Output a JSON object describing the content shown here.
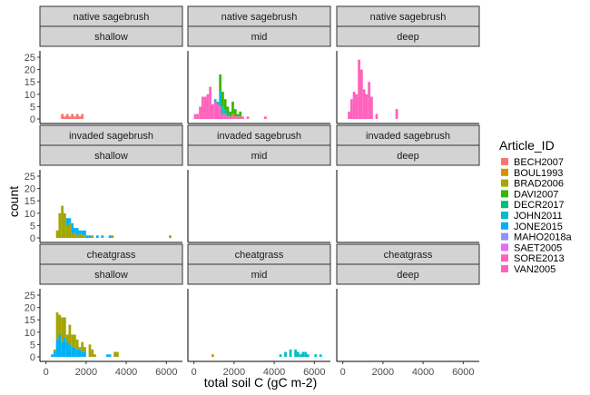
{
  "chart_data": {
    "type": "bar",
    "subtype": "faceted stacked histogram",
    "xlabel": "total soil C (gC m-2)",
    "ylabel": "count",
    "xlim": [
      -300,
      6800
    ],
    "ylim": [
      0,
      25
    ],
    "x_ticks": [
      0,
      2000,
      4000,
      6000
    ],
    "x_tick_labels": [
      "0",
      "2000",
      "4000",
      "6000"
    ],
    "y_ticks": [
      0,
      5,
      10,
      15,
      20,
      25
    ],
    "y_tick_labels": [
      "0",
      "5",
      "10",
      "15",
      "20",
      "25"
    ],
    "bin_width": 125,
    "legend": {
      "title": "Article_ID",
      "position": "right",
      "entries": [
        {
          "name": "BECH2007",
          "color": "#F8766D"
        },
        {
          "name": "BOUL1993",
          "color": "#D89000"
        },
        {
          "name": "BRAD2006",
          "color": "#A3A500"
        },
        {
          "name": "DAVI2007",
          "color": "#39B600"
        },
        {
          "name": "DECR2017",
          "color": "#00BF7D"
        },
        {
          "name": "JOHN2011",
          "color": "#00BFC4"
        },
        {
          "name": "JONE2015",
          "color": "#00B0F6"
        },
        {
          "name": "MAHO2018a",
          "color": "#9590FF"
        },
        {
          "name": "SAET2005",
          "color": "#E76BF3"
        },
        {
          "name": "SORE2013",
          "color": "#FF62BC"
        },
        {
          "name": "VAN2005",
          "color": "#FF62BC"
        }
      ]
    },
    "panels": [
      {
        "row_label": "native sagebrush",
        "col_label": "shallow",
        "row": 0,
        "col": 0,
        "bars": [
          {
            "x": 750,
            "series": "BECH2007",
            "count": 2
          },
          {
            "x": 875,
            "series": "BECH2007",
            "count": 1
          },
          {
            "x": 1000,
            "series": "BECH2007",
            "count": 2
          },
          {
            "x": 1125,
            "series": "BECH2007",
            "count": 1
          },
          {
            "x": 1250,
            "series": "BECH2007",
            "count": 2
          },
          {
            "x": 1375,
            "series": "BECH2007",
            "count": 1
          },
          {
            "x": 1500,
            "series": "BECH2007",
            "count": 2
          },
          {
            "x": 1625,
            "series": "BECH2007",
            "count": 1
          },
          {
            "x": 1750,
            "series": "BECH2007",
            "count": 2
          }
        ]
      },
      {
        "row_label": "native sagebrush",
        "col_label": "mid",
        "row": 0,
        "col": 1,
        "bars": [
          {
            "x": 0,
            "series": "SORE2013",
            "count": 2
          },
          {
            "x": 125,
            "series": "SORE2013",
            "count": 2
          },
          {
            "x": 250,
            "series": "SORE2013",
            "count": 5
          },
          {
            "x": 375,
            "series": "SORE2013",
            "count": 9
          },
          {
            "x": 500,
            "series": "SORE2013",
            "count": 9
          },
          {
            "x": 625,
            "series": "SORE2013",
            "count": 10
          },
          {
            "x": 750,
            "series": "SORE2013",
            "count": 13
          },
          {
            "x": 875,
            "series": "SORE2013",
            "count": 6
          },
          {
            "x": 1000,
            "series": "SORE2013",
            "count": 7
          },
          {
            "x": 1000,
            "series": "JOHN2011",
            "count": 1
          },
          {
            "x": 1125,
            "series": "SORE2013",
            "count": 6
          },
          {
            "x": 1125,
            "series": "JOHN2011",
            "count": 1
          },
          {
            "x": 1250,
            "series": "SORE2013",
            "count": 5
          },
          {
            "x": 1250,
            "series": "JOHN2011",
            "count": 6
          },
          {
            "x": 1250,
            "series": "DAVI2007",
            "count": 7
          },
          {
            "x": 1375,
            "series": "SORE2013",
            "count": 2
          },
          {
            "x": 1375,
            "series": "JOHN2011",
            "count": 3
          },
          {
            "x": 1375,
            "series": "DAVI2007",
            "count": 6
          },
          {
            "x": 1500,
            "series": "SORE2013",
            "count": 2
          },
          {
            "x": 1500,
            "series": "JOHN2011",
            "count": 2
          },
          {
            "x": 1500,
            "series": "DAVI2007",
            "count": 4
          },
          {
            "x": 1625,
            "series": "SORE2013",
            "count": 1
          },
          {
            "x": 1625,
            "series": "JOHN2011",
            "count": 1
          },
          {
            "x": 1625,
            "series": "DAVI2007",
            "count": 3
          },
          {
            "x": 1750,
            "series": "SORE2013",
            "count": 1
          },
          {
            "x": 1750,
            "series": "DAVI2007",
            "count": 2
          },
          {
            "x": 1875,
            "series": "SORE2013",
            "count": 2
          },
          {
            "x": 1875,
            "series": "DAVI2007",
            "count": 5
          },
          {
            "x": 2000,
            "series": "SORE2013",
            "count": 1
          },
          {
            "x": 2000,
            "series": "DAVI2007",
            "count": 3
          },
          {
            "x": 2125,
            "series": "SORE2013",
            "count": 1
          },
          {
            "x": 2125,
            "series": "DAVI2007",
            "count": 1
          },
          {
            "x": 2250,
            "series": "SORE2013",
            "count": 1
          },
          {
            "x": 2250,
            "series": "DAVI2007",
            "count": 2
          },
          {
            "x": 2375,
            "series": "SORE2013",
            "count": 1
          },
          {
            "x": 2625,
            "series": "SORE2013",
            "count": 1
          },
          {
            "x": 3500,
            "series": "SORE2013",
            "count": 1
          }
        ]
      },
      {
        "row_label": "native sagebrush",
        "col_label": "deep",
        "row": 0,
        "col": 2,
        "bars": [
          {
            "x": 250,
            "series": "SORE2013",
            "count": 3
          },
          {
            "x": 375,
            "series": "SORE2013",
            "count": 8
          },
          {
            "x": 500,
            "series": "SORE2013",
            "count": 11
          },
          {
            "x": 625,
            "series": "SORE2013",
            "count": 10
          },
          {
            "x": 750,
            "series": "SORE2013",
            "count": 24
          },
          {
            "x": 875,
            "series": "SORE2013",
            "count": 20
          },
          {
            "x": 1000,
            "series": "SORE2013",
            "count": 12
          },
          {
            "x": 1125,
            "series": "SORE2013",
            "count": 10
          },
          {
            "x": 1250,
            "series": "SORE2013",
            "count": 15
          },
          {
            "x": 1375,
            "series": "SORE2013",
            "count": 9
          },
          {
            "x": 1625,
            "series": "SORE2013",
            "count": 2
          },
          {
            "x": 2625,
            "series": "SORE2013",
            "count": 4
          }
        ]
      },
      {
        "row_label": "invaded sagebrush",
        "col_label": "shallow",
        "row": 1,
        "col": 0,
        "bars": [
          {
            "x": 500,
            "series": "BRAD2006",
            "count": 3
          },
          {
            "x": 625,
            "series": "BRAD2006",
            "count": 10
          },
          {
            "x": 750,
            "series": "BRAD2006",
            "count": 13
          },
          {
            "x": 875,
            "series": "BRAD2006",
            "count": 10
          },
          {
            "x": 1000,
            "series": "BRAD2006",
            "count": 5
          },
          {
            "x": 1000,
            "series": "JONE2015",
            "count": 3
          },
          {
            "x": 1125,
            "series": "BRAD2006",
            "count": 6
          },
          {
            "x": 1125,
            "series": "JONE2015",
            "count": 2
          },
          {
            "x": 1250,
            "series": "BRAD2006",
            "count": 2
          },
          {
            "x": 1250,
            "series": "JONE2015",
            "count": 4
          },
          {
            "x": 1375,
            "series": "BRAD2006",
            "count": 2
          },
          {
            "x": 1375,
            "series": "JONE2015",
            "count": 2
          },
          {
            "x": 1500,
            "series": "BRAD2006",
            "count": 1
          },
          {
            "x": 1500,
            "series": "JONE2015",
            "count": 3
          },
          {
            "x": 1625,
            "series": "BRAD2006",
            "count": 2
          },
          {
            "x": 1625,
            "series": "JONE2015",
            "count": 1
          },
          {
            "x": 1750,
            "series": "BRAD2006",
            "count": 1
          },
          {
            "x": 1750,
            "series": "JONE2015",
            "count": 2
          },
          {
            "x": 1875,
            "series": "BRAD2006",
            "count": 1
          },
          {
            "x": 1875,
            "series": "JONE2015",
            "count": 2
          },
          {
            "x": 2000,
            "series": "JONE2015",
            "count": 1
          },
          {
            "x": 2125,
            "series": "JONE2015",
            "count": 1
          },
          {
            "x": 2250,
            "series": "BRAD2006",
            "count": 1
          },
          {
            "x": 2500,
            "series": "JONE2015",
            "count": 1
          },
          {
            "x": 2750,
            "series": "JONE2015",
            "count": 1
          },
          {
            "x": 3125,
            "series": "JONE2015",
            "count": 1
          },
          {
            "x": 3250,
            "series": "BRAD2006",
            "count": 1
          },
          {
            "x": 6125,
            "series": "BRAD2006",
            "count": 1
          }
        ]
      },
      {
        "row_label": "invaded sagebrush",
        "col_label": "mid",
        "row": 1,
        "col": 1,
        "bars": []
      },
      {
        "row_label": "invaded sagebrush",
        "col_label": "deep",
        "row": 1,
        "col": 2,
        "bars": []
      },
      {
        "row_label": "cheatgrass",
        "col_label": "shallow",
        "row": 2,
        "col": 0,
        "bars": [
          {
            "x": 250,
            "series": "JONE2015",
            "count": 1
          },
          {
            "x": 375,
            "series": "JONE2015",
            "count": 2
          },
          {
            "x": 375,
            "series": "BRAD2006",
            "count": 1
          },
          {
            "x": 500,
            "series": "JONE2015",
            "count": 7
          },
          {
            "x": 500,
            "series": "BRAD2006",
            "count": 11
          },
          {
            "x": 625,
            "series": "JONE2015",
            "count": 9
          },
          {
            "x": 625,
            "series": "BRAD2006",
            "count": 8
          },
          {
            "x": 750,
            "series": "JONE2015",
            "count": 6
          },
          {
            "x": 750,
            "series": "BRAD2006",
            "count": 10
          },
          {
            "x": 875,
            "series": "JONE2015",
            "count": 8
          },
          {
            "x": 875,
            "series": "BRAD2006",
            "count": 8
          },
          {
            "x": 1000,
            "series": "JONE2015",
            "count": 6
          },
          {
            "x": 1000,
            "series": "BRAD2006",
            "count": 3
          },
          {
            "x": 1125,
            "series": "JONE2015",
            "count": 5
          },
          {
            "x": 1125,
            "series": "BRAD2006",
            "count": 8
          },
          {
            "x": 1250,
            "series": "JONE2015",
            "count": 4
          },
          {
            "x": 1250,
            "series": "BRAD2006",
            "count": 5
          },
          {
            "x": 1375,
            "series": "JONE2015",
            "count": 4
          },
          {
            "x": 1375,
            "series": "BRAD2006",
            "count": 5
          },
          {
            "x": 1500,
            "series": "JONE2015",
            "count": 3
          },
          {
            "x": 1500,
            "series": "BRAD2006",
            "count": 4
          },
          {
            "x": 1625,
            "series": "JONE2015",
            "count": 3
          },
          {
            "x": 1625,
            "series": "BRAD2006",
            "count": 1
          },
          {
            "x": 1750,
            "series": "JONE2015",
            "count": 2
          },
          {
            "x": 1750,
            "series": "BRAD2006",
            "count": 4
          },
          {
            "x": 1875,
            "series": "JONE2015",
            "count": 2
          },
          {
            "x": 1875,
            "series": "BRAD2006",
            "count": 2
          },
          {
            "x": 2125,
            "series": "BRAD2006",
            "count": 5
          },
          {
            "x": 2250,
            "series": "BRAD2006",
            "count": 3
          },
          {
            "x": 2375,
            "series": "BRAD2006",
            "count": 1
          },
          {
            "x": 3000,
            "series": "JONE2015",
            "count": 1
          },
          {
            "x": 3125,
            "series": "JONE2015",
            "count": 1
          },
          {
            "x": 3375,
            "series": "BRAD2006",
            "count": 2
          },
          {
            "x": 3500,
            "series": "BRAD2006",
            "count": 2
          }
        ]
      },
      {
        "row_label": "cheatgrass",
        "col_label": "mid",
        "row": 2,
        "col": 1,
        "bars": [
          {
            "x": 875,
            "series": "BOUL1993",
            "count": 1
          },
          {
            "x": 4250,
            "series": "JOHN2011",
            "count": 1
          },
          {
            "x": 4500,
            "series": "JOHN2011",
            "count": 2
          },
          {
            "x": 4750,
            "series": "JOHN2011",
            "count": 3
          },
          {
            "x": 5000,
            "series": "JOHN2011",
            "count": 3
          },
          {
            "x": 5125,
            "series": "JOHN2011",
            "count": 2
          },
          {
            "x": 5250,
            "series": "JOHN2011",
            "count": 1
          },
          {
            "x": 5375,
            "series": "JOHN2011",
            "count": 2
          },
          {
            "x": 5500,
            "series": "JOHN2011",
            "count": 2
          },
          {
            "x": 5625,
            "series": "JOHN2011",
            "count": 1
          },
          {
            "x": 6000,
            "series": "JOHN2011",
            "count": 1
          },
          {
            "x": 6250,
            "series": "JOHN2011",
            "count": 1
          }
        ]
      },
      {
        "row_label": "cheatgrass",
        "col_label": "deep",
        "row": 2,
        "col": 2,
        "bars": []
      }
    ]
  }
}
